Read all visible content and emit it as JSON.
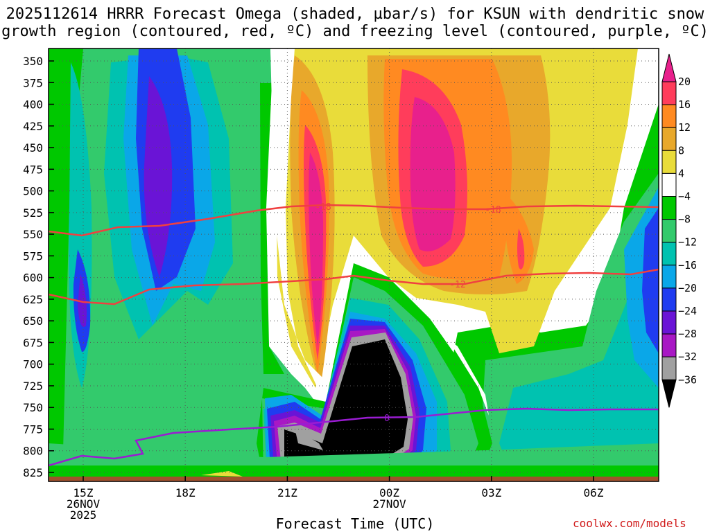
{
  "chart_data": {
    "type": "heatmap",
    "title_line1": "2025112614 HRRR Forecast Omega (shaded, µbar/s) for KSUN with dendritic snow",
    "title_line2": "growth region (contoured, red, ºC) and freezing level (contoured, purple, ºC)",
    "xlabel": "Forecast Time (UTC)",
    "credit": "coolwx.com/models",
    "y_ticks": [
      350,
      375,
      400,
      425,
      450,
      475,
      500,
      525,
      550,
      575,
      600,
      625,
      650,
      675,
      700,
      725,
      750,
      775,
      800,
      825
    ],
    "ylim": [
      825,
      350
    ],
    "y_axis_reversed": true,
    "x_ticks": [
      {
        "label1": "15Z",
        "label2": "26NOV",
        "label3": "2025"
      },
      {
        "label1": "18Z",
        "label2": "",
        "label3": ""
      },
      {
        "label1": "21Z",
        "label2": "",
        "label3": ""
      },
      {
        "label1": "00Z",
        "label2": "27NOV",
        "label3": ""
      },
      {
        "label1": "03Z",
        "label2": "",
        "label3": ""
      },
      {
        "label1": "06Z",
        "label2": "",
        "label3": ""
      }
    ],
    "grid": true,
    "colorbar": {
      "units": "µbar/s",
      "labels": [
        "20",
        "16",
        "12",
        "8",
        "4",
        "−4",
        "−8",
        "−12",
        "−16",
        "−20",
        "−24",
        "−28",
        "−32",
        "−36"
      ],
      "colors": [
        "#ff3d5b",
        "#ff8a21",
        "#e8a82b",
        "#e9dc3a",
        "#ffffff",
        "#00c800",
        "#33ca6c",
        "#00c2b0",
        "#0aa7e8",
        "#1f3cf0",
        "#6a14d6",
        "#a818c4",
        "#a0a0a0"
      ],
      "top_arrow_color": "#e8208c",
      "bottom_arrow_color": "#000000",
      "position": "right"
    },
    "contours": [
      {
        "label": "-18",
        "color": "#f04040"
      },
      {
        "label": "-12",
        "color": "#f04040"
      },
      {
        "label": "0",
        "color": "#9a1cd2"
      }
    ],
    "colors": {
      "grid": "#555555",
      "terrain": "#a0522d"
    }
  }
}
